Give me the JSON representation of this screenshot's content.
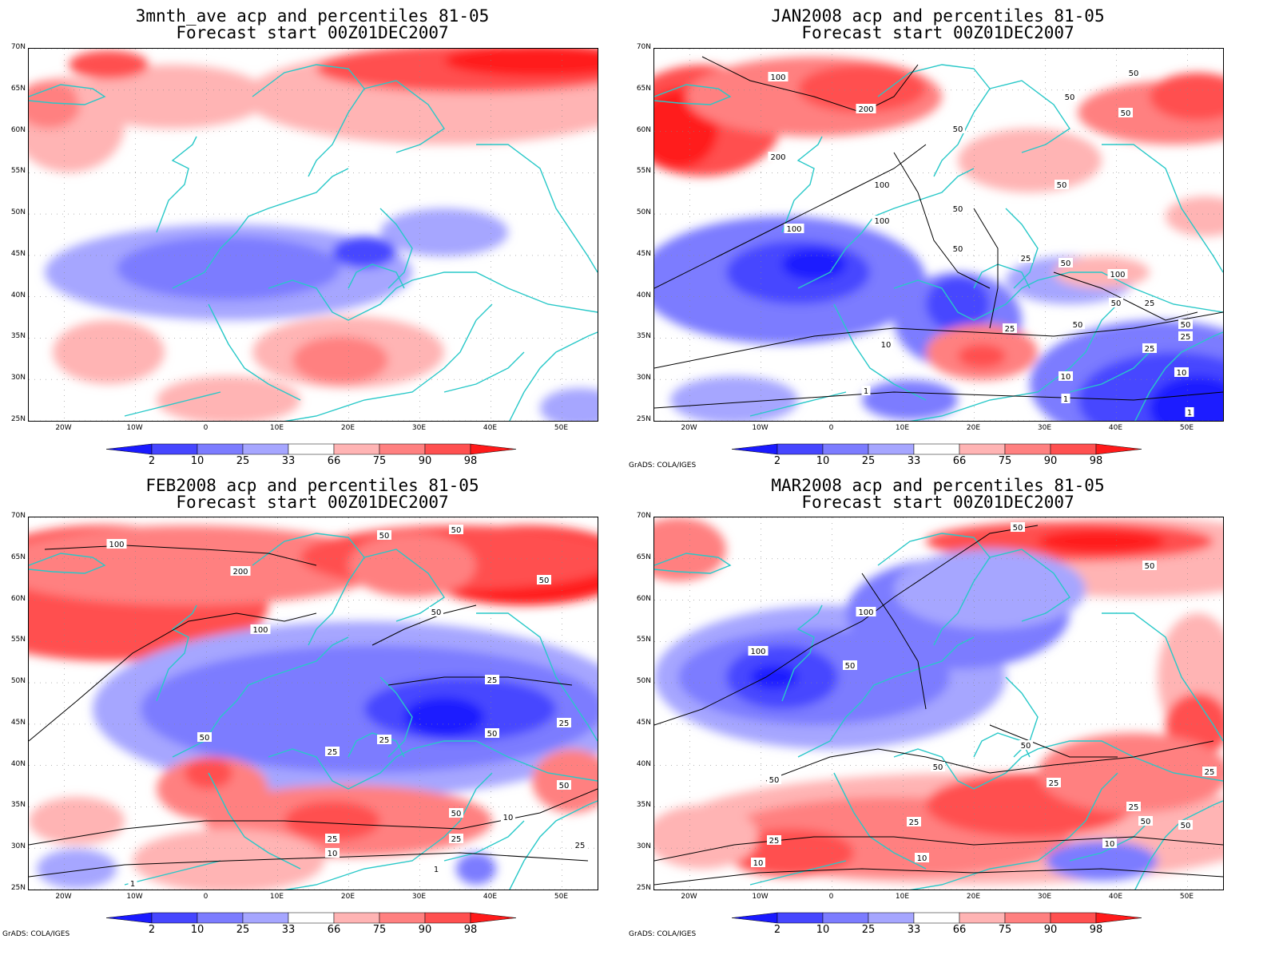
{
  "colors": {
    "red_98": "#ff1a1a",
    "red_90": "#ff5050",
    "red_75": "#ff8080",
    "red_66": "#ffb4b4",
    "blue_33": "#a6a6ff",
    "blue_25": "#7c7cff",
    "blue_10": "#4646ff",
    "blue_2": "#1a1aff",
    "coast": "#28c8c8",
    "contour": "#000000"
  },
  "axes": {
    "lat_labels": [
      "70N",
      "65N",
      "60N",
      "55N",
      "50N",
      "45N",
      "40N",
      "35N",
      "30N",
      "25N"
    ],
    "lon_labels": [
      "20W",
      "10W",
      "0",
      "10E",
      "20E",
      "30E",
      "40E",
      "50E"
    ]
  },
  "colorbar": {
    "labels": [
      "2",
      "10",
      "25",
      "33",
      "66",
      "75",
      "90",
      "98"
    ]
  },
  "credit": "GrADS: COLA/IGES",
  "panels": [
    {
      "title_line1": "3mnth_ave acp and percentiles 81-05",
      "title_line2": "Forecast start 00Z01DEC2007",
      "contour_labels": []
    },
    {
      "title_line1": "JAN2008 acp and percentiles 81-05",
      "title_line2": "Forecast start 00Z01DEC2007",
      "contour_labels": [
        "100",
        "200",
        "200",
        "100",
        "100",
        "100",
        "50",
        "50",
        "50",
        "50",
        "50",
        "50",
        "50",
        "25",
        "50",
        "100",
        "50",
        "25",
        "25",
        "25",
        "10",
        "10",
        "1",
        "1",
        "1",
        "10",
        "50",
        "25",
        "50"
      ]
    },
    {
      "title_line1": "FEB2008 acp and percentiles 81-05",
      "title_line2": "Forecast start 00Z01DEC2007",
      "contour_labels": [
        "100",
        "200",
        "100",
        "50",
        "50",
        "50",
        "50",
        "25",
        "25",
        "50",
        "50",
        "25",
        "50",
        "50",
        "25",
        "10",
        "25",
        "25",
        "25",
        "1",
        "1",
        "10"
      ]
    },
    {
      "title_line1": "MAR2008 acp and percentiles 81-05",
      "title_line2": "Forecast start 00Z01DEC2007",
      "contour_labels": [
        "50",
        "50",
        "100",
        "100",
        "50",
        "50",
        "50",
        "50",
        "25",
        "25",
        "50",
        "25",
        "10",
        "10",
        "10",
        "25",
        "50",
        "25"
      ]
    }
  ]
}
